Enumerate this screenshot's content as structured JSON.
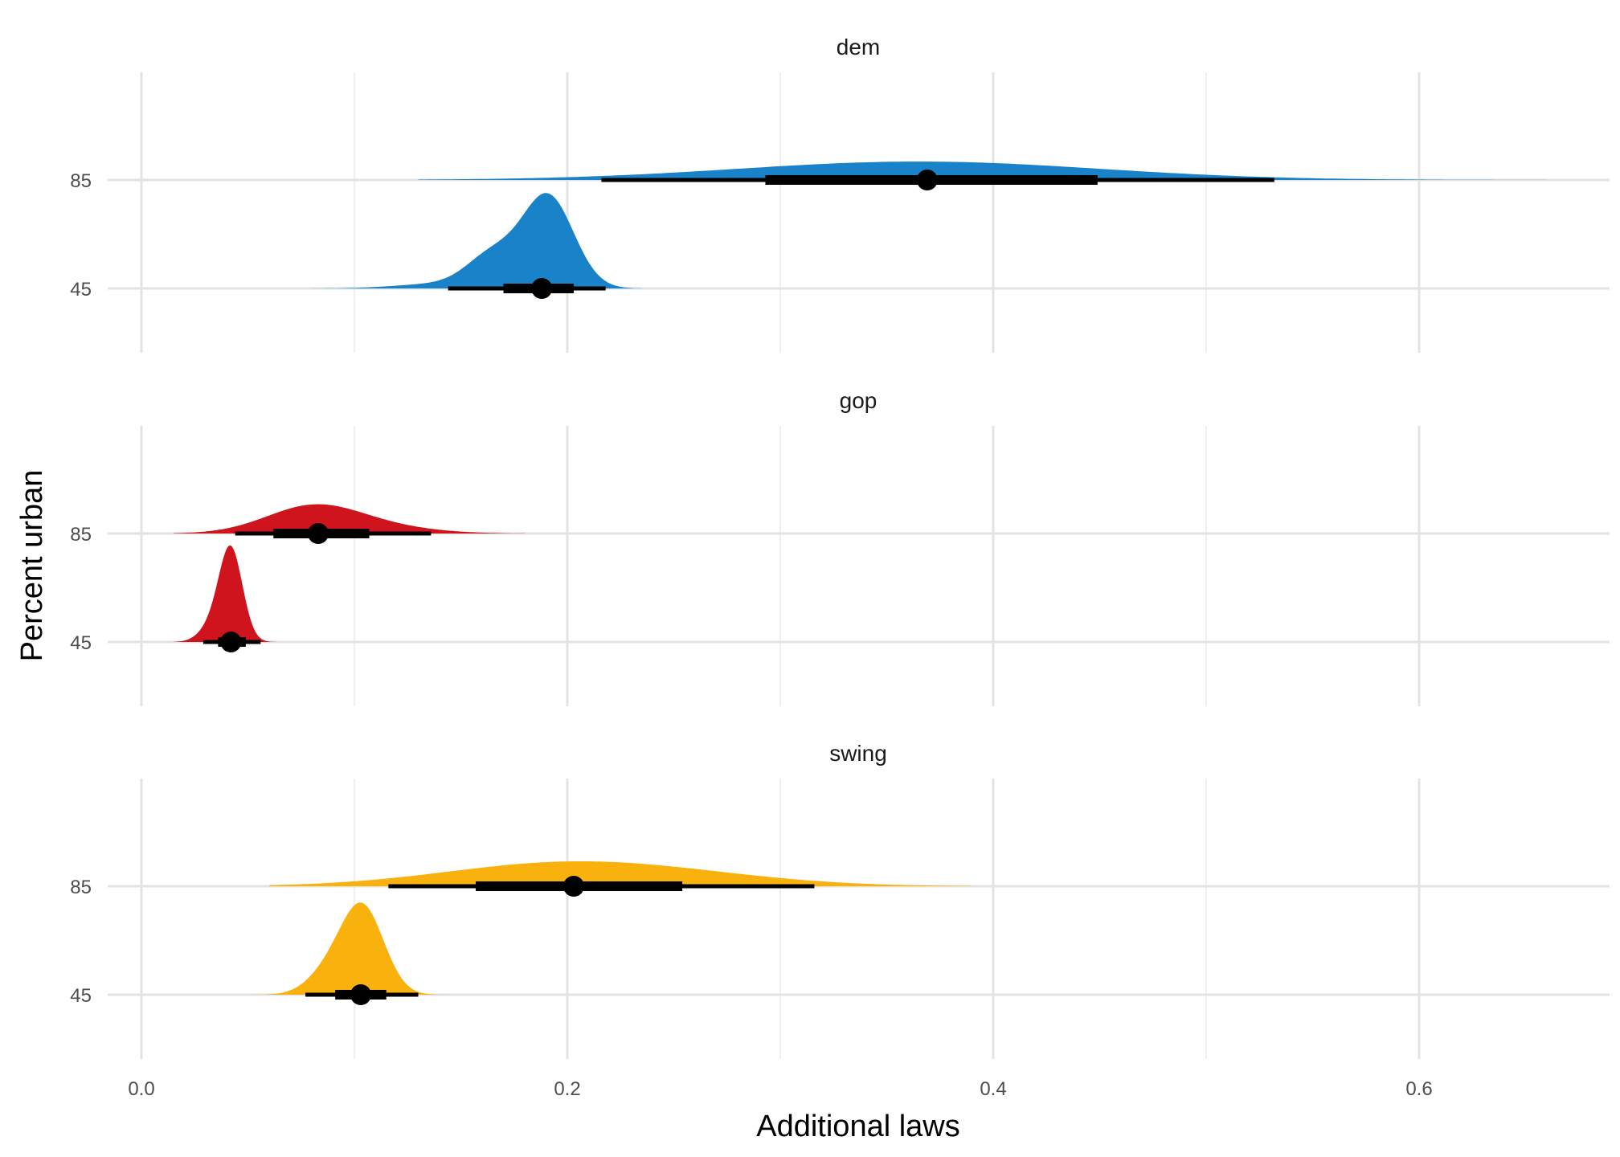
{
  "chart_data": {
    "type": "density-interval",
    "xlabel": "Additional laws",
    "ylabel": "Percent urban",
    "xlim": [
      -0.03,
      0.69
    ],
    "x_ticks": [
      "0.0",
      "0.2",
      "0.4",
      "0.6"
    ],
    "x_tick_values": [
      0.0,
      0.2,
      0.4,
      0.6
    ],
    "y_categories": [
      "85",
      "45"
    ],
    "grid": true,
    "panels": [
      {
        "label": "dem",
        "color": "#1a82c8",
        "rows": [
          {
            "category": "85",
            "median": 0.369,
            "interval_66": [
              0.293,
              0.449
            ],
            "interval_95": [
              0.216,
              0.532
            ],
            "density": {
              "components": [
                {
                  "mu": 0.365,
                  "sd": 0.085,
                  "w": 1
                }
              ],
              "range": [
                0.13,
                0.66
              ],
              "peak_height": 0.17
            }
          },
          {
            "category": "45",
            "median": 0.188,
            "interval_66": [
              0.17,
              0.203
            ],
            "interval_95": [
              0.144,
              0.218
            ],
            "density": {
              "components": [
                {
                  "mu": 0.191,
                  "sd": 0.012,
                  "w": 1
                },
                {
                  "mu": 0.165,
                  "sd": 0.012,
                  "w": 0.35
                },
                {
                  "mu": 0.14,
                  "sd": 0.02,
                  "w": 0.05
                }
              ],
              "range": [
                0.08,
                0.235
              ],
              "peak_height": 0.88
            }
          }
        ]
      },
      {
        "label": "gop",
        "color": "#cf141d",
        "rows": [
          {
            "category": "85",
            "median": 0.083,
            "interval_66": [
              0.062,
              0.107
            ],
            "interval_95": [
              0.044,
              0.136
            ],
            "density": {
              "components": [
                {
                  "mu": 0.08,
                  "sd": 0.022,
                  "w": 1
                },
                {
                  "mu": 0.11,
                  "sd": 0.025,
                  "w": 0.25
                }
              ],
              "range": [
                0.015,
                0.18
              ],
              "peak_height": 0.27
            }
          },
          {
            "category": "45",
            "median": 0.042,
            "interval_66": [
              0.036,
              0.049
            ],
            "interval_95": [
              0.029,
              0.056
            ],
            "density": {
              "components": [
                {
                  "mu": 0.042,
                  "sd": 0.0055,
                  "w": 1
                },
                {
                  "mu": 0.033,
                  "sd": 0.006,
                  "w": 0.15
                }
              ],
              "range": [
                0.015,
                0.065
              ],
              "peak_height": 0.89
            }
          }
        ]
      },
      {
        "label": "swing",
        "color": "#f9b10e",
        "rows": [
          {
            "category": "85",
            "median": 0.203,
            "interval_66": [
              0.157,
              0.254
            ],
            "interval_95": [
              0.116,
              0.316
            ],
            "density": {
              "components": [
                {
                  "mu": 0.195,
                  "sd": 0.055,
                  "w": 1
                },
                {
                  "mu": 0.26,
                  "sd": 0.05,
                  "w": 0.3
                }
              ],
              "range": [
                0.06,
                0.39
              ],
              "peak_height": 0.23
            }
          },
          {
            "category": "45",
            "median": 0.103,
            "interval_66": [
              0.091,
              0.115
            ],
            "interval_95": [
              0.077,
              0.13
            ],
            "density": {
              "components": [
                {
                  "mu": 0.104,
                  "sd": 0.01,
                  "w": 1
                },
                {
                  "mu": 0.088,
                  "sd": 0.01,
                  "w": 0.25
                }
              ],
              "range": [
                0.05,
                0.148
              ],
              "peak_height": 0.85
            }
          }
        ]
      }
    ]
  }
}
